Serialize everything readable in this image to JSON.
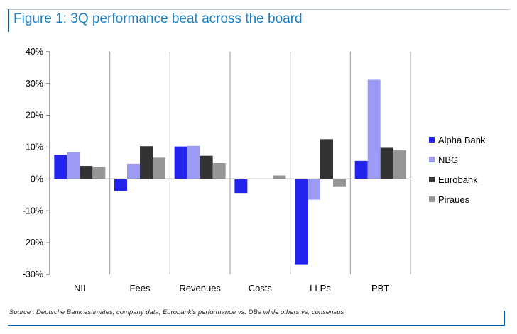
{
  "title": "Figure 1: 3Q performance beat across the board",
  "source": "Source : Deutsche Bank estimates, company data; Eurobank's performance vs. DBe while others vs. consensus",
  "chart_data": {
    "type": "bar",
    "categories": [
      "NII",
      "Fees",
      "Revenues",
      "Costs",
      "LLPs",
      "PBT"
    ],
    "series": [
      {
        "name": "Alpha Bank",
        "color": "#2323ee",
        "values": [
          7.6,
          -3.8,
          10.2,
          -4.4,
          -26.8,
          5.7
        ]
      },
      {
        "name": "NBG",
        "color": "#9b9bf5",
        "values": [
          8.4,
          4.8,
          10.4,
          0,
          -6.5,
          31.2
        ]
      },
      {
        "name": "Eurobank",
        "color": "#333333",
        "values": [
          4.1,
          10.3,
          7.3,
          0,
          12.5,
          9.8
        ]
      },
      {
        "name": "Piraues",
        "color": "#969696",
        "values": [
          3.8,
          6.7,
          5.0,
          1.1,
          -2.3,
          9.0
        ]
      }
    ],
    "y_ticks": [
      "40%",
      "30%",
      "20%",
      "10%",
      "0%",
      "-10%",
      "-20%",
      "-30%"
    ],
    "ylim": [
      -30,
      40
    ],
    "xlabel": "",
    "ylabel": "",
    "legend": "right"
  }
}
